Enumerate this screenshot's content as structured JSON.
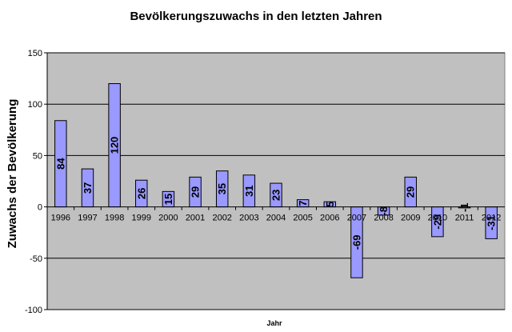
{
  "chart_data": {
    "type": "bar",
    "title": "Bevölkerungszuwachs in den letzten Jahren",
    "xlabel": "Jahr",
    "ylabel": "Zuwachs der Bevölkerung",
    "categories": [
      "1996",
      "1997",
      "1998",
      "1999",
      "2000",
      "2001",
      "2002",
      "2003",
      "2004",
      "2005",
      "2006",
      "2007",
      "2008",
      "2009",
      "2010",
      "2011",
      "2012"
    ],
    "values": [
      84,
      37,
      120,
      26,
      15,
      29,
      35,
      31,
      23,
      7,
      5,
      -69,
      -8,
      29,
      -29,
      -1,
      -31
    ],
    "data_labels": [
      "84",
      "37",
      "120",
      "26",
      "15",
      "29",
      "35",
      "31",
      "23",
      "7",
      "5",
      "-69",
      "-8",
      "29",
      "-29",
      "-1",
      "-31"
    ],
    "ylim": [
      -100,
      150
    ],
    "yticks": [
      150,
      100,
      50,
      0,
      -50,
      -100
    ],
    "ytick_labels": [
      "150",
      "100",
      "50",
      "0",
      "-50",
      "-100"
    ],
    "grid": true,
    "legend": "none",
    "colors": {
      "bar_fill": "#9999ff",
      "bar_stroke": "#000000",
      "plot_background": "#c0c0c0",
      "grid": "#000000"
    }
  }
}
